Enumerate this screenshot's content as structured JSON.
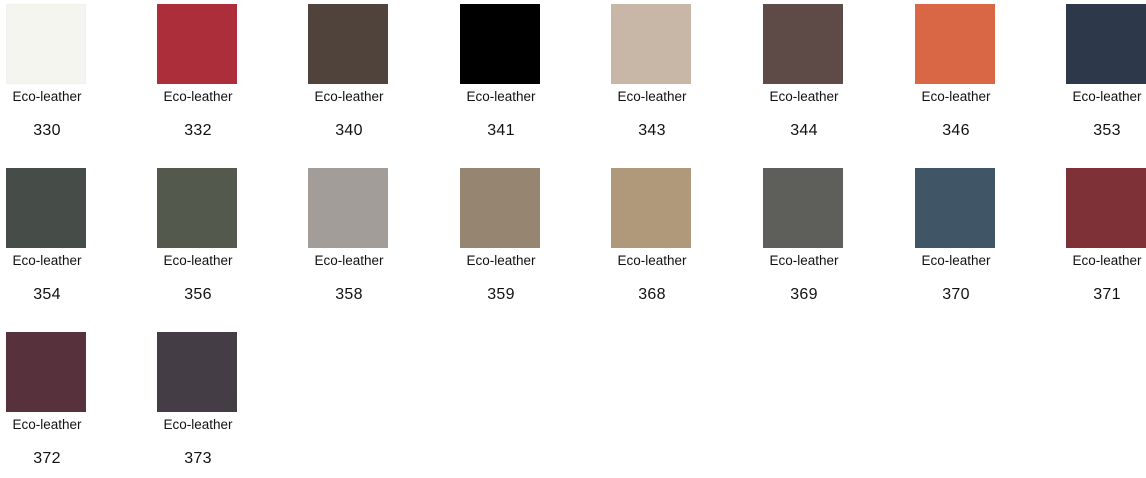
{
  "swatches": [
    {
      "material": "Eco-leather",
      "code": "330",
      "color": "#f5f5f0"
    },
    {
      "material": "Eco-leather",
      "code": "332",
      "color": "#ad2e3b"
    },
    {
      "material": "Eco-leather",
      "code": "340",
      "color": "#4f433c"
    },
    {
      "material": "Eco-leather",
      "code": "341",
      "color": "#000000"
    },
    {
      "material": "Eco-leather",
      "code": "343",
      "color": "#c8b7a6"
    },
    {
      "material": "Eco-leather",
      "code": "344",
      "color": "#5e4b47"
    },
    {
      "material": "Eco-leather",
      "code": "346",
      "color": "#d96645"
    },
    {
      "material": "Eco-leather",
      "code": "353",
      "color": "#2d394b"
    },
    {
      "material": "Eco-leather",
      "code": "354",
      "color": "#464d49"
    },
    {
      "material": "Eco-leather",
      "code": "356",
      "color": "#53594c"
    },
    {
      "material": "Eco-leather",
      "code": "358",
      "color": "#a29d99"
    },
    {
      "material": "Eco-leather",
      "code": "359",
      "color": "#968570"
    },
    {
      "material": "Eco-leather",
      "code": "368",
      "color": "#b0997b"
    },
    {
      "material": "Eco-leather",
      "code": "369",
      "color": "#5e5e5b"
    },
    {
      "material": "Eco-leather",
      "code": "370",
      "color": "#405566"
    },
    {
      "material": "Eco-leather",
      "code": "371",
      "color": "#7e3237"
    },
    {
      "material": "Eco-leather",
      "code": "372",
      "color": "#57313c"
    },
    {
      "material": "Eco-leather",
      "code": "373",
      "color": "#453d46"
    }
  ]
}
